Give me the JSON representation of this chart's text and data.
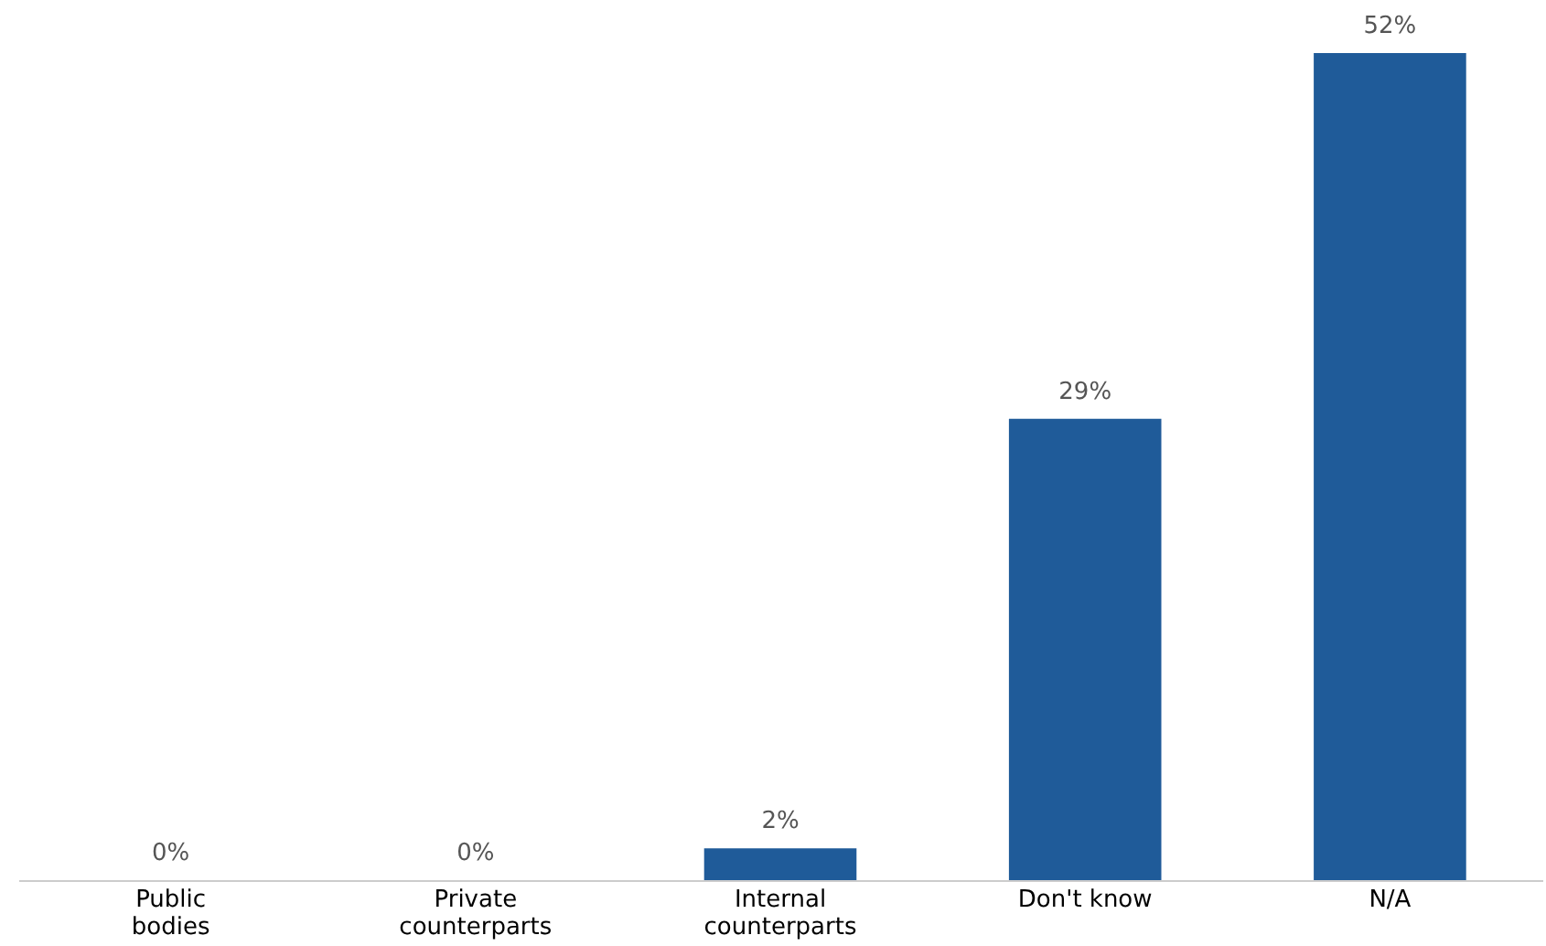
{
  "chart_data": {
    "type": "bar",
    "categories": [
      "Public bodies",
      "Private counterparts",
      "Internal counterparts",
      "Don't know",
      "N/A"
    ],
    "values": [
      0,
      0,
      2,
      29,
      52
    ],
    "value_labels": [
      "0%",
      "0%",
      "2%",
      "29%",
      "52%"
    ],
    "color": "#1f5b99"
  }
}
